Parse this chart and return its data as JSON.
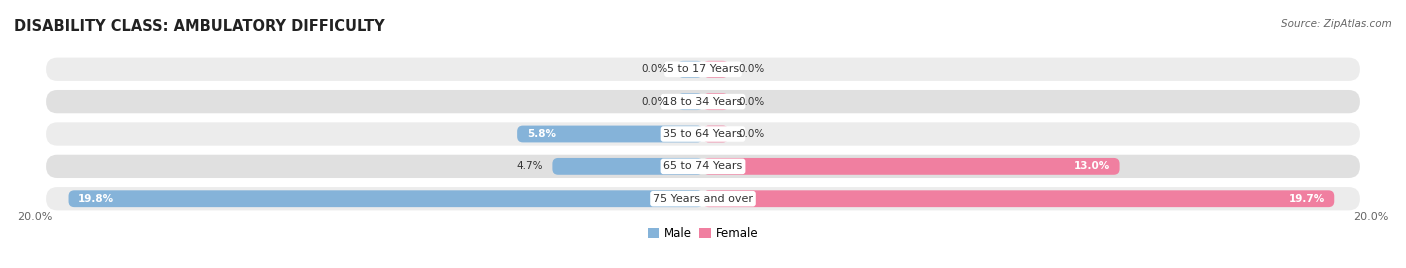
{
  "title": "DISABILITY CLASS: AMBULATORY DIFFICULTY",
  "source": "Source: ZipAtlas.com",
  "categories": [
    "5 to 17 Years",
    "18 to 34 Years",
    "35 to 64 Years",
    "65 to 74 Years",
    "75 Years and over"
  ],
  "male_values": [
    0.0,
    0.0,
    5.8,
    4.7,
    19.8
  ],
  "female_values": [
    0.0,
    0.0,
    0.0,
    13.0,
    19.7
  ],
  "male_color": "#85b3d9",
  "female_color": "#f07fa0",
  "row_bg_color_light": "#ececec",
  "row_bg_color_dark": "#e0e0e0",
  "max_value": 20.0,
  "axis_label_left": "20.0%",
  "axis_label_right": "20.0%",
  "male_label": "Male",
  "female_label": "Female",
  "title_fontsize": 10.5,
  "source_fontsize": 7.5,
  "legend_fontsize": 8.5,
  "category_fontsize": 8,
  "value_fontsize": 7.5,
  "axis_tick_fontsize": 8,
  "bg_color": "#ffffff",
  "min_bar_display": 0.3
}
